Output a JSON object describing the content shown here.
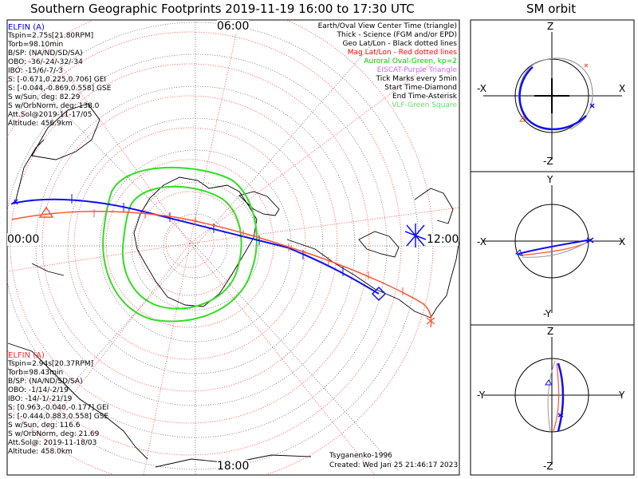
{
  "title": "Southern Geographic Footprints 2019-11-19 16:00 to 17:30 UTC",
  "orbit_title": "SM orbit",
  "time_labels": {
    "top": "06:00",
    "left": "00:00",
    "right": "12:00",
    "bottom": "18:00"
  },
  "elfin_a": {
    "name": "ELFIN (A)",
    "lines": [
      "Tspin=2.75s[21.80RPM]",
      "Torb=98.10min",
      "B/SP: (NA/ND/SD/SA)",
      "OBO: -36/-24/-32/-34",
      "IBO: -15/6/-7/-3",
      "S: [-0.671,0.225,0.706] GEI",
      "S: [-0.044,-0.869,0.558] GSE",
      "S w/Sun, deg: 82.29",
      "S w/OrbNorm, deg: 138.0",
      "Att.Sol@2019-11-17/05",
      "Altitude: 456.9km"
    ],
    "color": "#0000ff"
  },
  "elfin_b": {
    "name": "ELFIN (A)",
    "lines": [
      "Tspin=2.94s[20.37RPM]",
      "Torb=98.43min",
      "B/SP: (NA/ND/SD/SA)",
      "OBO: -1/14/-2/19",
      "IBO: -14/-1/-21/19",
      "S: [0.963,-0.040,-0.177] GEI",
      "S: [-0.444,0.883,0.558] GSE",
      "S w/Sun, deg: 116.6",
      "S w/OrbNorm, deg: 21.69",
      "Att.Sol@: 2019-11-18/03",
      "Altitude: 458.0km"
    ],
    "color": "#ff0000"
  },
  "legend": [
    {
      "text": "Earth/Oval View Center Time (triangle)",
      "color": "#000000"
    },
    {
      "text": "Thick - Science (FGM and/or EPD)",
      "color": "#000000"
    },
    {
      "text": "Geo Lat/Lon - Black dotted lines",
      "color": "#000000"
    },
    {
      "text": "Mag Lat/Lon - Red dotted lines",
      "color": "#ff0000"
    },
    {
      "text": "Auroral Oval-Green, kp=2",
      "color": "#00cc00"
    },
    {
      "text": "EISCAT-Purple Triangle",
      "color": "#cc66ff"
    },
    {
      "text": "Tick Marks every 5min",
      "color": "#000000"
    },
    {
      "text": "Start Time-Diamond",
      "color": "#000000"
    },
    {
      "text": "End Time-Asterisk",
      "color": "#000000"
    },
    {
      "text": "VLF-Green Square",
      "color": "#66dd66"
    }
  ],
  "credits": {
    "author": "Tsyganenko-1996",
    "created": "Created: Wed Jan 25 21:46:17 2023"
  },
  "panels": [
    {
      "top": "Z",
      "bottom": "-Z",
      "left": "-X",
      "right": "X"
    },
    {
      "top": "Y",
      "bottom": "-Y",
      "left": "-X",
      "right": "X"
    },
    {
      "top": "Z",
      "bottom": "-Z",
      "left": "-Y",
      "right": "Y"
    }
  ]
}
